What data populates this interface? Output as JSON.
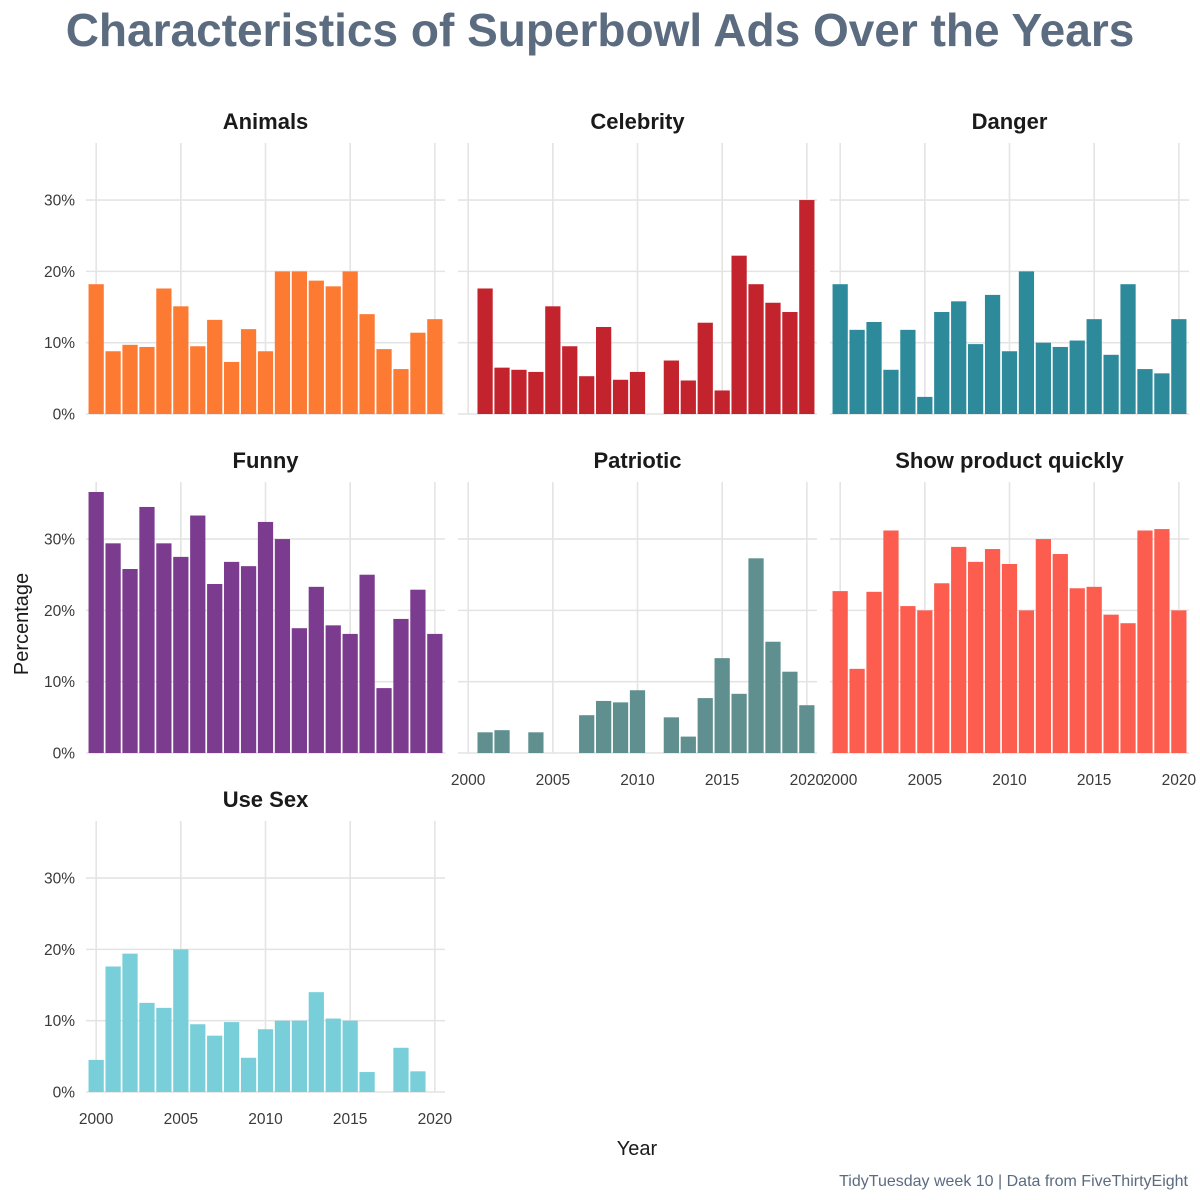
{
  "chart_data": {
    "type": "bar",
    "title": "Characteristics of Superbowl Ads Over the Years",
    "xlabel": "Year",
    "ylabel": "Percentage",
    "caption": "TidyTuesday week 10 | Data from FiveThirtyEight",
    "xlim": [
      1999.4,
      2020.6
    ],
    "ylim": [
      0,
      38
    ],
    "x_ticks": [
      2000,
      2005,
      2010,
      2015,
      2020
    ],
    "y_ticks": [
      0,
      10,
      20,
      30
    ],
    "y_tick_labels": [
      "0%",
      "10%",
      "20%",
      "30%"
    ],
    "grid": true,
    "legend": "none",
    "years": [
      2000,
      2001,
      2002,
      2003,
      2004,
      2005,
      2006,
      2007,
      2008,
      2009,
      2010,
      2011,
      2012,
      2013,
      2014,
      2015,
      2016,
      2017,
      2018,
      2019,
      2020
    ],
    "panels": [
      {
        "title": "Animals",
        "color": "#fd7a33",
        "values": [
          18.2,
          8.8,
          9.7,
          9.4,
          17.6,
          15.1,
          9.5,
          13.2,
          7.3,
          11.9,
          8.8,
          20.0,
          20.0,
          18.7,
          17.9,
          20.0,
          14.0,
          9.1,
          6.3,
          11.4,
          13.3
        ]
      },
      {
        "title": "Celebrity",
        "color": "#c3232c",
        "values": [
          0,
          17.6,
          6.5,
          6.2,
          5.9,
          15.1,
          9.5,
          5.3,
          12.2,
          4.8,
          5.9,
          0,
          7.5,
          4.7,
          12.8,
          3.3,
          22.2,
          18.2,
          15.6,
          14.3,
          30.0
        ]
      },
      {
        "title": "Danger",
        "color": "#2c8a9b",
        "values": [
          18.2,
          11.8,
          12.9,
          6.2,
          11.8,
          2.4,
          14.3,
          15.8,
          9.8,
          16.7,
          8.8,
          20.0,
          10.0,
          9.4,
          10.3,
          13.3,
          8.3,
          18.2,
          6.3,
          5.7,
          13.3
        ]
      },
      {
        "title": "Funny",
        "color": "#7b3b8f",
        "values": [
          36.6,
          29.4,
          25.8,
          34.5,
          29.4,
          27.5,
          33.3,
          23.7,
          26.8,
          26.2,
          32.4,
          30.0,
          17.5,
          23.3,
          17.9,
          16.7,
          25.0,
          9.1,
          18.8,
          22.9,
          16.7
        ]
      },
      {
        "title": "Patriotic",
        "color": "#5f8f8f",
        "values": [
          0,
          2.9,
          3.2,
          0,
          2.9,
          0,
          0,
          5.3,
          7.3,
          7.1,
          8.8,
          0,
          5.0,
          2.3,
          7.7,
          13.3,
          8.3,
          27.3,
          15.6,
          11.4,
          6.7
        ]
      },
      {
        "title": "Show product quickly",
        "color": "#fd5d4e",
        "values": [
          22.7,
          11.8,
          22.6,
          31.2,
          20.6,
          20.0,
          23.8,
          28.9,
          26.8,
          28.6,
          26.5,
          20.0,
          30.0,
          27.9,
          23.1,
          23.3,
          19.4,
          18.2,
          31.2,
          31.4,
          20.0
        ]
      },
      {
        "title": "Use Sex",
        "color": "#78cfd9",
        "values": [
          4.5,
          17.6,
          19.4,
          12.5,
          11.8,
          20.0,
          9.5,
          7.9,
          9.8,
          4.8,
          8.8,
          10.0,
          10.0,
          14.0,
          10.3,
          10.0,
          2.8,
          0,
          6.2,
          2.9,
          0
        ]
      }
    ]
  }
}
